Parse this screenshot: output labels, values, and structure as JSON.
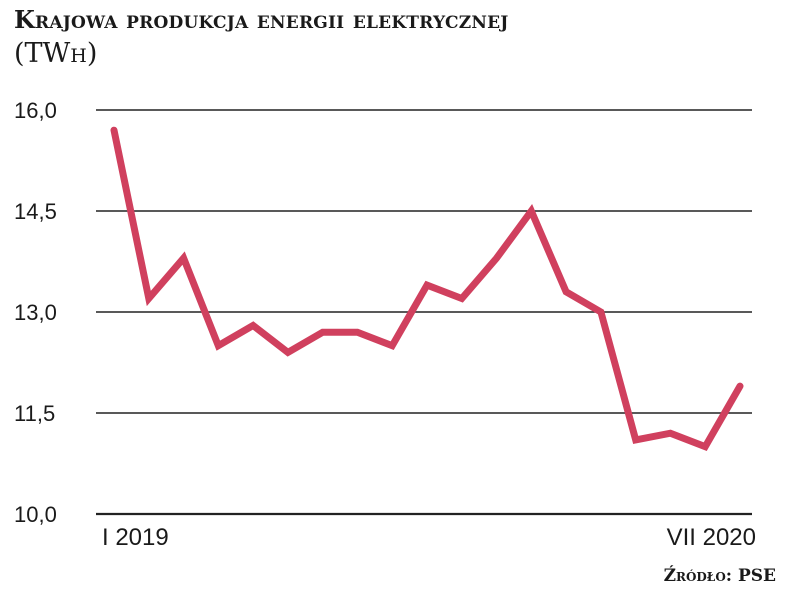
{
  "header": {
    "title": "Krajowa produkcja energii elektrycznej",
    "unit": "(TWh)"
  },
  "source": "Źródło: PSE",
  "colors": {
    "line": "#d0405e",
    "grid": "#222222",
    "text": "#1a1a1a"
  },
  "chart_data": {
    "type": "line",
    "title": "Krajowa produkcja energii elektrycznej",
    "ylabel": "(TWh)",
    "ylim": [
      10.0,
      16.0
    ],
    "yticks": [
      "10,0",
      "11,5",
      "13,0",
      "14,5",
      "16,0"
    ],
    "x_labels": [
      "I 2019",
      "VII 2020"
    ],
    "x": [
      "2019-01",
      "2019-02",
      "2019-03",
      "2019-04",
      "2019-05",
      "2019-06",
      "2019-07",
      "2019-08",
      "2019-09",
      "2019-10",
      "2019-11",
      "2019-12",
      "2020-01",
      "2020-02",
      "2020-03",
      "2020-04",
      "2020-05",
      "2020-06",
      "2020-07"
    ],
    "series": [
      {
        "values": [
          15.7,
          13.2,
          13.8,
          12.5,
          12.8,
          12.4,
          12.7,
          12.7,
          12.5,
          13.4,
          13.2,
          13.8,
          14.5,
          13.3,
          13.0,
          11.1,
          11.2,
          11.0,
          11.9
        ]
      }
    ],
    "grid": true
  }
}
